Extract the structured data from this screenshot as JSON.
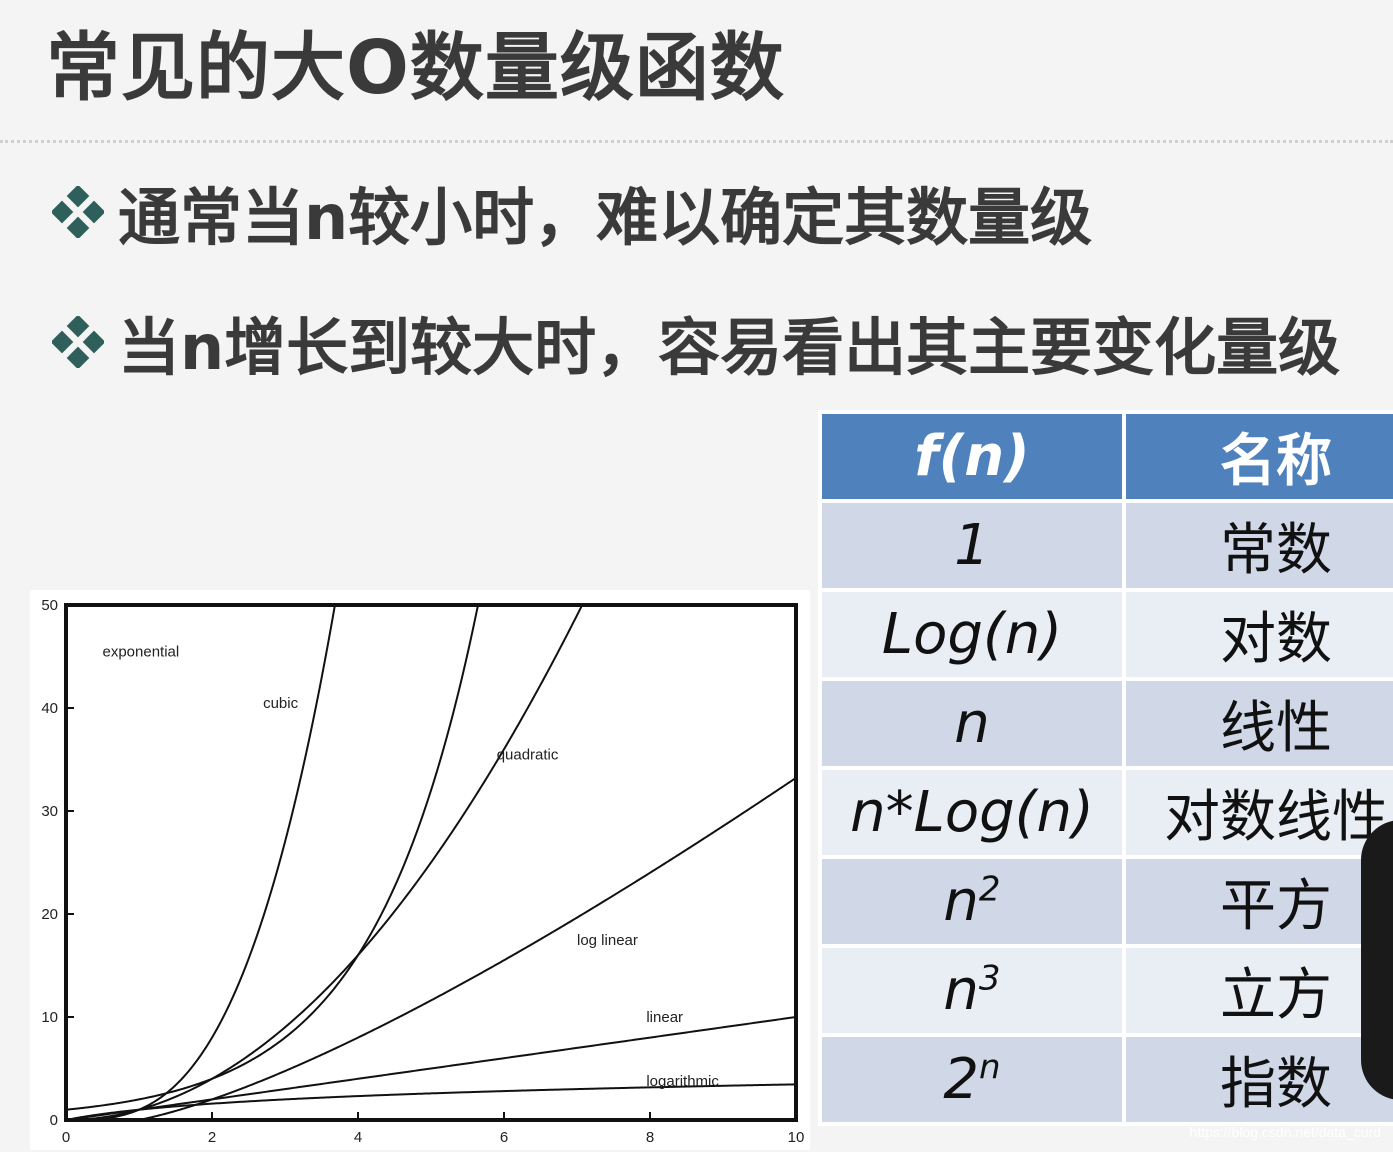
{
  "slide": {
    "title": "常见的大O数量级函数",
    "bullets": [
      "通常当n较小时，难以确定其数量级",
      "当n增长到较大时，容易看出其主要变化量级"
    ]
  },
  "table": {
    "headers": {
      "fn": "f(n)",
      "name": "名称"
    },
    "rows": [
      {
        "fn": "1",
        "sup": "",
        "name": "常数"
      },
      {
        "fn": "Log(n)",
        "sup": "",
        "name": "对数"
      },
      {
        "fn": "n",
        "sup": "",
        "name": "线性"
      },
      {
        "fn": "n*Log(n)",
        "sup": "",
        "name": "对数线性"
      },
      {
        "fn": "n",
        "sup": "2",
        "name": "平方"
      },
      {
        "fn": "n",
        "sup": "3",
        "name": "立方"
      },
      {
        "fn": "2",
        "sup": "n",
        "name": "指数"
      }
    ]
  },
  "watermark": "https://blog.csdn.net/data_curd",
  "colors": {
    "header": "#4f81bd",
    "row_a": "#d0d8e8",
    "row_b": "#e9edf4",
    "bullet": "#2f5f5a"
  },
  "chart_data": {
    "type": "line",
    "xlim": [
      0,
      10
    ],
    "ylim": [
      0,
      50
    ],
    "xticks": [
      0,
      2,
      4,
      6,
      8,
      10
    ],
    "yticks": [
      0,
      10,
      20,
      30,
      40,
      50
    ],
    "grid": false,
    "series": [
      {
        "name": "exponential",
        "func": "2^x"
      },
      {
        "name": "cubic",
        "func": "x^3"
      },
      {
        "name": "quadratic",
        "func": "x^2"
      },
      {
        "name": "log linear",
        "func": "x*log2(x)"
      },
      {
        "name": "linear",
        "func": "x"
      },
      {
        "name": "logarithmic",
        "func": "log2(x)"
      }
    ]
  }
}
